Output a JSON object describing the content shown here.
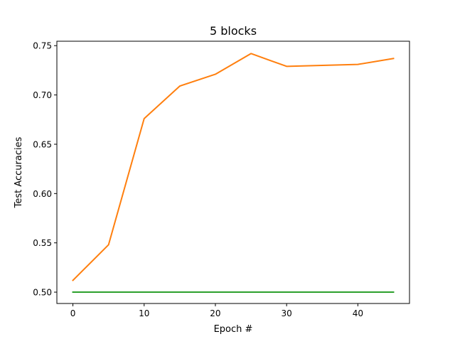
{
  "chart_data": {
    "type": "line",
    "title": "5 blocks",
    "xlabel": "Epoch #",
    "ylabel": "Test Accuracies",
    "xlim": [
      -2.25,
      47.25
    ],
    "ylim": [
      0.4885,
      0.7545
    ],
    "x_ticks": [
      0,
      10,
      20,
      30,
      40
    ],
    "x_tick_labels": [
      "0",
      "10",
      "20",
      "30",
      "40"
    ],
    "y_ticks": [
      0.5,
      0.55,
      0.6,
      0.65,
      0.7,
      0.75
    ],
    "y_tick_labels": [
      "0.50",
      "0.55",
      "0.60",
      "0.65",
      "0.70",
      "0.75"
    ],
    "grid": false,
    "x": [
      0,
      5,
      10,
      15,
      20,
      25,
      30,
      35,
      40,
      45
    ],
    "series": [
      {
        "name": "series-orange",
        "color": "#ff7f0e",
        "values": [
          0.512,
          0.548,
          0.676,
          0.709,
          0.721,
          0.742,
          0.729,
          0.73,
          0.731,
          0.737
        ]
      },
      {
        "name": "series-green",
        "color": "#2ca02c",
        "values": [
          0.5,
          0.5,
          0.5,
          0.5,
          0.5,
          0.5,
          0.5,
          0.5,
          0.5,
          0.5
        ]
      }
    ]
  }
}
